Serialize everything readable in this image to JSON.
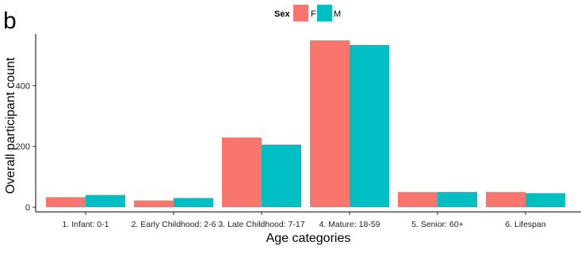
{
  "panel_label": "b",
  "colors": {
    "F": "#F8766D",
    "M": "#00BFC4"
  },
  "chart_data": {
    "type": "bar",
    "xlabel": "Age categories",
    "ylabel": "Overall participant count",
    "ylim": [
      0,
      570
    ],
    "yticks": [
      0,
      200,
      400
    ],
    "grid": false,
    "legend": {
      "title": "Sex",
      "position": "top",
      "entries": [
        "F",
        "M"
      ]
    },
    "categories": [
      "1. Infant: 0-1",
      "2. Early Childhood: 2-6",
      "3. Late Childhood: 7-17",
      "4. Mature: 18-59",
      "5. Senior: 60+",
      "6. Lifespan"
    ],
    "series": [
      {
        "name": "F",
        "values": [
          33,
          22,
          229,
          549,
          50,
          50
        ]
      },
      {
        "name": "M",
        "values": [
          40,
          30,
          206,
          534,
          50,
          46
        ]
      }
    ]
  }
}
